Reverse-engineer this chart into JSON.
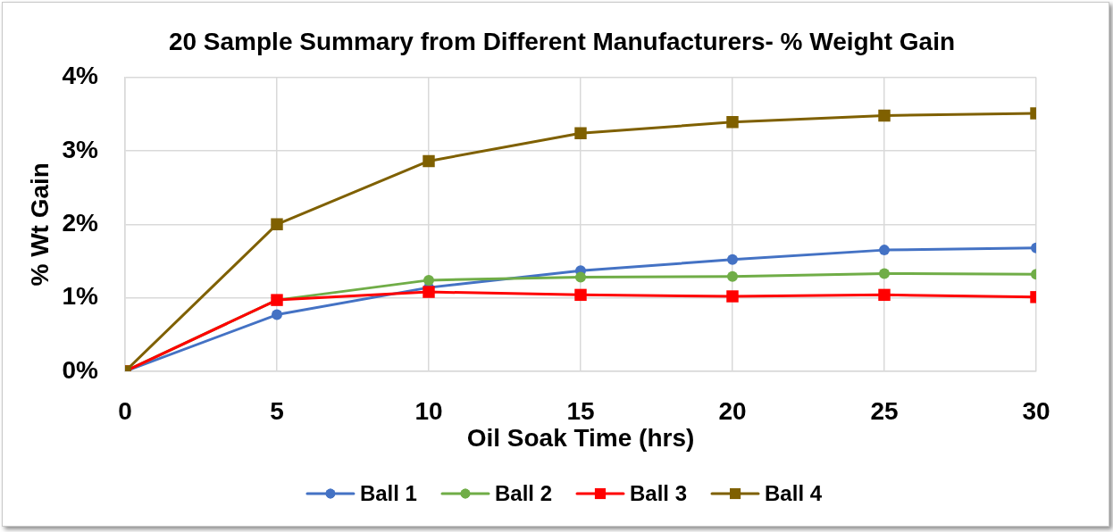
{
  "chart_data": {
    "type": "line",
    "title": "20 Sample Summary from Different Manufacturers- % Weight Gain",
    "xlabel": "Oil Soak Time (hrs)",
    "ylabel": "% Wt Gain",
    "x": [
      0,
      5,
      10,
      15,
      20,
      25,
      30
    ],
    "series": [
      {
        "name": "Ball 1",
        "color": "#4472c4",
        "marker": "circle",
        "values": [
          0,
          0.77,
          1.14,
          1.37,
          1.52,
          1.65,
          1.68
        ]
      },
      {
        "name": "Ball 2",
        "color": "#70ad47",
        "marker": "circle",
        "values": [
          0,
          0.97,
          1.24,
          1.28,
          1.29,
          1.33,
          1.32
        ]
      },
      {
        "name": "Ball 3",
        "color": "#ff0000",
        "marker": "square",
        "values": [
          0,
          0.97,
          1.08,
          1.04,
          1.02,
          1.04,
          1.01
        ]
      },
      {
        "name": "Ball 4",
        "color": "#7f6000",
        "marker": "square",
        "values": [
          0,
          2.0,
          2.86,
          3.24,
          3.39,
          3.48,
          3.51
        ]
      }
    ],
    "xlim": [
      0,
      30
    ],
    "xticks": [
      0,
      5,
      10,
      15,
      20,
      25,
      30
    ],
    "ylim": [
      0,
      4
    ],
    "yticks": [
      {
        "value": 0,
        "label": "0%"
      },
      {
        "value": 1,
        "label": "1%"
      },
      {
        "value": 2,
        "label": "2%"
      },
      {
        "value": 3,
        "label": "3%"
      },
      {
        "value": 4,
        "label": "4%"
      }
    ],
    "grid": true,
    "legend": "bottom"
  }
}
